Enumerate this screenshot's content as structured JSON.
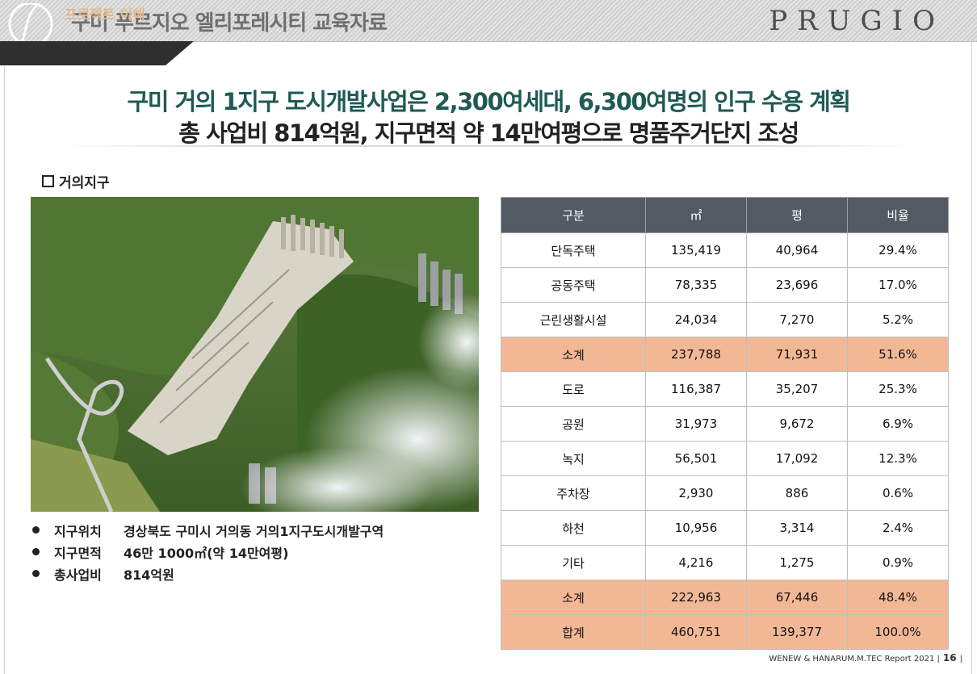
{
  "header": {
    "title": "구미 푸르지오 엘리포레시티 교육자료",
    "brand": "PRUGIO",
    "section_tab": "프로젝트 이해"
  },
  "headline": {
    "line1": "구미 거의 1지구 도시개발사업은  2,300여세대, 6,300여명의 인구 수용 계획",
    "line2": "총 사업비 814억원, 지구면적 약 14만여평으로 명품주거단지 조성"
  },
  "subsection": {
    "title": "거의지구",
    "icon": "checkbox-icon"
  },
  "aerial_image": {
    "description": "aerial-rendering-of-district",
    "colors": {
      "forest": "#3f6b2a",
      "buildings": "#d9d4c8",
      "mist": "#e9ecee"
    }
  },
  "info": [
    {
      "label": "지구위치",
      "value": "경상북도 구미시 거의동 거의1지구도시개발구역"
    },
    {
      "label": "지구면적",
      "value": "46만 1000㎡(약 14만여평)"
    },
    {
      "label": "총사업비",
      "value": "814억원"
    }
  ],
  "table": {
    "headers": [
      "구분",
      "㎡",
      "평",
      "비율"
    ],
    "rows": [
      {
        "cells": [
          "단독주택",
          "135,419",
          "40,964",
          "29.4%"
        ],
        "subtotal": false
      },
      {
        "cells": [
          "공동주택",
          "78,335",
          "23,696",
          "17.0%"
        ],
        "subtotal": false
      },
      {
        "cells": [
          "근린생활시설",
          "24,034",
          "7,270",
          "5.2%"
        ],
        "subtotal": false
      },
      {
        "cells": [
          "소계",
          "237,788",
          "71,931",
          "51.6%"
        ],
        "subtotal": true
      },
      {
        "cells": [
          "도로",
          "116,387",
          "35,207",
          "25.3%"
        ],
        "subtotal": false
      },
      {
        "cells": [
          "공원",
          "31,973",
          "9,672",
          "6.9%"
        ],
        "subtotal": false
      },
      {
        "cells": [
          "녹지",
          "56,501",
          "17,092",
          "12.3%"
        ],
        "subtotal": false
      },
      {
        "cells": [
          "주차장",
          "2,930",
          "886",
          "0.6%"
        ],
        "subtotal": false
      },
      {
        "cells": [
          "하천",
          "10,956",
          "3,314",
          "2.4%"
        ],
        "subtotal": false
      },
      {
        "cells": [
          "기타",
          "4,216",
          "1,275",
          "0.9%"
        ],
        "subtotal": false
      },
      {
        "cells": [
          "소계",
          "222,963",
          "67,446",
          "48.4%"
        ],
        "subtotal": true
      },
      {
        "cells": [
          "합계",
          "460,751",
          "139,377",
          "100.0%"
        ],
        "subtotal": true
      }
    ],
    "colors": {
      "header_bg": "#525a63",
      "subtotal_bg": "#f2b895"
    }
  },
  "footer": {
    "text": "WENEW & HANARUM.M.TEC Report 2021",
    "page": "16"
  }
}
